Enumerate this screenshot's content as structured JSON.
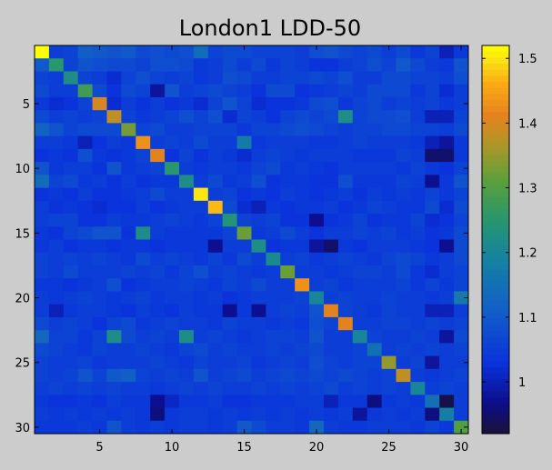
{
  "chart_data": {
    "type": "heatmap",
    "title": "London1 LDD-50",
    "xlabel": "",
    "ylabel": "",
    "rows": 30,
    "cols": 30,
    "x_ticks": [
      "5",
      "10",
      "15",
      "20",
      "25",
      "30"
    ],
    "y_ticks": [
      "5",
      "10",
      "15",
      "20",
      "25",
      "30"
    ],
    "colorbar": {
      "min": 0.92,
      "max": 1.52,
      "ticks": [
        "1",
        "1.1",
        "1.2",
        "1.3",
        "1.4",
        "1.5"
      ],
      "colormap": "parula"
    },
    "diagonal": [
      1.52,
      1.25,
      1.22,
      1.28,
      1.4,
      1.38,
      1.33,
      1.43,
      1.41,
      1.25,
      1.22,
      1.5,
      1.47,
      1.24,
      1.32,
      1.22,
      1.21,
      1.32,
      1.43,
      1.2,
      1.41,
      1.41,
      1.2,
      1.15,
      1.35,
      1.38,
      1.2,
      1.15,
      1.18,
      1.3
    ],
    "values": [
      [
        1.52,
        1.05,
        1.06,
        1.11,
        1.1,
        1.09,
        1.1,
        1.07,
        1.08,
        1.07,
        1.08,
        1.14,
        1.06,
        1.07,
        1.07,
        1.06,
        1.06,
        1.06,
        1.05,
        1.08,
        1.09,
        1.07,
        1.06,
        1.07,
        1.05,
        1.07,
        1.04,
        1.06,
        1.0,
        1.04
      ],
      [
        1.1,
        1.25,
        1.06,
        1.09,
        1.08,
        1.07,
        1.07,
        1.06,
        1.08,
        1.08,
        1.07,
        1.04,
        1.05,
        1.07,
        1.05,
        1.07,
        1.04,
        1.06,
        1.05,
        1.03,
        1.03,
        1.05,
        1.06,
        1.08,
        1.06,
        1.1,
        1.07,
        1.05,
        1.04,
        1.09
      ],
      [
        1.06,
        1.05,
        1.22,
        1.06,
        1.05,
        1.02,
        1.06,
        1.08,
        1.06,
        1.05,
        1.06,
        1.04,
        1.05,
        1.08,
        1.07,
        1.05,
        1.05,
        1.06,
        1.06,
        1.07,
        1.06,
        1.08,
        1.05,
        1.05,
        1.07,
        1.07,
        1.06,
        1.06,
        1.05,
        1.08
      ],
      [
        1.07,
        1.05,
        1.05,
        1.28,
        1.07,
        1.03,
        1.07,
        1.06,
        0.98,
        1.09,
        1.05,
        1.06,
        1.07,
        1.06,
        1.05,
        1.03,
        1.07,
        1.07,
        1.03,
        1.04,
        1.05,
        1.06,
        1.05,
        1.07,
        1.07,
        1.07,
        1.04,
        1.06,
        1.02,
        1.05
      ],
      [
        1.04,
        1.02,
        1.03,
        1.06,
        1.4,
        1.02,
        1.05,
        1.03,
        1.05,
        1.03,
        1.04,
        1.02,
        1.06,
        1.09,
        1.06,
        1.02,
        1.03,
        1.03,
        1.04,
        1.07,
        1.08,
        1.04,
        1.06,
        1.07,
        1.05,
        1.06,
        1.05,
        1.06,
        1.04,
        1.05
      ],
      [
        1.07,
        1.05,
        1.06,
        1.05,
        1.06,
        1.38,
        1.06,
        1.04,
        1.05,
        1.06,
        1.08,
        1.06,
        1.08,
        1.02,
        1.06,
        1.05,
        1.03,
        1.06,
        1.07,
        1.06,
        1.07,
        1.22,
        1.06,
        1.07,
        1.07,
        1.08,
        1.05,
        1.0,
        1.0,
        1.06
      ],
      [
        1.12,
        1.09,
        1.06,
        1.07,
        1.07,
        1.07,
        1.33,
        1.06,
        1.07,
        1.05,
        1.05,
        1.06,
        1.06,
        1.06,
        1.04,
        1.06,
        1.06,
        1.07,
        1.08,
        1.07,
        1.06,
        1.05,
        1.06,
        1.06,
        1.07,
        1.07,
        1.06,
        1.06,
        1.05,
        1.07
      ],
      [
        1.05,
        1.05,
        1.04,
        1.0,
        1.03,
        1.05,
        1.04,
        1.43,
        1.05,
        1.06,
        1.05,
        1.07,
        1.05,
        1.05,
        1.17,
        1.04,
        1.05,
        1.05,
        1.05,
        1.04,
        1.04,
        1.05,
        1.06,
        1.05,
        1.05,
        1.05,
        1.04,
        1.0,
        0.98,
        1.04
      ],
      [
        1.03,
        1.04,
        1.03,
        1.08,
        1.04,
        1.03,
        1.04,
        1.06,
        1.41,
        1.03,
        1.06,
        1.03,
        1.05,
        1.04,
        1.02,
        1.05,
        1.06,
        1.05,
        1.04,
        1.05,
        1.05,
        1.05,
        1.04,
        1.04,
        1.04,
        1.06,
        1.05,
        0.95,
        0.95,
        1.04
      ],
      [
        1.09,
        1.04,
        1.05,
        1.05,
        1.03,
        1.09,
        1.04,
        1.05,
        1.06,
        1.25,
        1.05,
        1.04,
        1.05,
        1.05,
        1.04,
        1.06,
        1.07,
        1.04,
        1.05,
        1.04,
        1.03,
        1.05,
        1.05,
        1.05,
        1.05,
        1.04,
        1.06,
        1.04,
        1.03,
        1.06
      ],
      [
        1.14,
        1.06,
        1.07,
        1.04,
        1.05,
        1.03,
        1.05,
        1.03,
        1.04,
        1.04,
        1.22,
        1.05,
        1.07,
        1.04,
        1.05,
        1.08,
        1.03,
        1.04,
        1.04,
        1.03,
        1.03,
        1.08,
        1.04,
        1.04,
        1.04,
        1.06,
        1.05,
        0.97,
        1.04,
        1.09
      ],
      [
        1.03,
        1.04,
        1.03,
        1.05,
        1.03,
        1.03,
        1.04,
        1.05,
        1.07,
        1.05,
        1.05,
        1.5,
        1.05,
        1.06,
        1.03,
        1.04,
        1.03,
        1.05,
        1.04,
        1.03,
        1.04,
        1.05,
        1.03,
        1.05,
        1.04,
        1.05,
        1.04,
        1.06,
        1.04,
        1.06
      ],
      [
        1.05,
        1.03,
        1.04,
        1.03,
        1.02,
        1.03,
        1.03,
        1.05,
        1.03,
        1.04,
        1.05,
        1.05,
        1.47,
        1.07,
        1.02,
        1.0,
        1.04,
        1.03,
        1.04,
        1.04,
        1.05,
        1.03,
        1.04,
        1.06,
        1.05,
        1.04,
        1.04,
        1.07,
        1.02,
        1.07
      ],
      [
        1.05,
        1.06,
        1.06,
        1.03,
        1.03,
        1.05,
        1.04,
        1.04,
        1.05,
        1.06,
        1.05,
        1.04,
        1.06,
        1.24,
        1.06,
        1.05,
        1.06,
        1.03,
        1.03,
        0.97,
        1.03,
        1.04,
        1.06,
        1.03,
        1.04,
        1.04,
        1.06,
        1.02,
        1.03,
        1.06
      ],
      [
        1.04,
        1.03,
        1.06,
        1.07,
        1.09,
        1.09,
        1.03,
        1.22,
        1.05,
        1.04,
        1.04,
        1.04,
        1.04,
        1.06,
        1.32,
        1.04,
        1.05,
        1.07,
        1.05,
        1.03,
        1.05,
        1.05,
        1.06,
        1.05,
        1.06,
        1.04,
        1.05,
        1.03,
        1.04,
        1.07
      ],
      [
        1.04,
        1.05,
        1.03,
        1.04,
        1.04,
        1.03,
        1.04,
        1.04,
        1.03,
        1.04,
        1.04,
        1.04,
        0.97,
        1.05,
        1.05,
        1.22,
        1.03,
        1.04,
        1.04,
        0.98,
        0.95,
        1.04,
        1.03,
        1.05,
        1.05,
        1.05,
        1.04,
        1.03,
        0.97,
        1.07
      ],
      [
        1.06,
        1.05,
        1.06,
        1.05,
        1.06,
        1.05,
        1.04,
        1.07,
        1.05,
        1.06,
        1.05,
        1.04,
        1.06,
        1.04,
        1.07,
        1.05,
        1.21,
        1.05,
        1.06,
        1.04,
        1.05,
        1.06,
        1.05,
        1.04,
        1.06,
        1.07,
        1.06,
        1.04,
        1.05,
        1.07
      ],
      [
        1.06,
        1.05,
        1.07,
        1.05,
        1.05,
        1.05,
        1.06,
        1.05,
        1.06,
        1.04,
        1.06,
        1.08,
        1.05,
        1.06,
        1.05,
        1.04,
        1.05,
        1.32,
        1.05,
        1.05,
        1.04,
        1.05,
        1.06,
        1.06,
        1.05,
        1.07,
        1.04,
        1.02,
        1.05,
        1.06
      ],
      [
        1.04,
        1.04,
        1.03,
        1.04,
        1.05,
        1.08,
        1.03,
        1.04,
        1.05,
        1.05,
        1.06,
        1.05,
        1.04,
        1.06,
        1.05,
        1.07,
        1.05,
        1.05,
        1.43,
        1.05,
        1.06,
        1.04,
        1.05,
        1.05,
        1.05,
        1.06,
        1.04,
        1.06,
        1.04,
        1.06
      ],
      [
        1.05,
        1.04,
        1.05,
        1.06,
        1.05,
        1.04,
        1.05,
        1.06,
        1.04,
        1.05,
        1.05,
        1.04,
        1.05,
        1.03,
        1.04,
        1.05,
        1.05,
        1.05,
        1.06,
        1.2,
        1.05,
        1.06,
        1.05,
        1.05,
        1.06,
        1.05,
        1.05,
        1.04,
        1.05,
        1.17
      ],
      [
        1.05,
        1.0,
        1.04,
        1.05,
        1.05,
        1.04,
        1.03,
        1.05,
        1.04,
        1.03,
        1.05,
        1.04,
        1.04,
        0.97,
        1.04,
        0.97,
        1.05,
        1.06,
        1.05,
        1.09,
        1.41,
        1.06,
        1.05,
        1.04,
        1.06,
        1.05,
        1.05,
        1.0,
        1.0,
        1.05
      ],
      [
        1.07,
        1.05,
        1.06,
        1.05,
        1.03,
        1.06,
        1.07,
        1.04,
        1.05,
        1.06,
        1.05,
        1.05,
        1.04,
        1.06,
        1.05,
        1.05,
        1.04,
        1.05,
        1.04,
        1.08,
        1.06,
        1.41,
        1.05,
        1.05,
        1.06,
        1.06,
        1.05,
        1.06,
        1.05,
        1.06
      ],
      [
        1.13,
        1.06,
        1.06,
        1.04,
        1.06,
        1.22,
        1.07,
        1.05,
        1.06,
        1.05,
        1.22,
        1.05,
        1.06,
        1.05,
        1.04,
        1.05,
        1.06,
        1.06,
        1.05,
        1.09,
        1.05,
        1.05,
        1.2,
        1.06,
        1.05,
        1.05,
        1.06,
        1.05,
        0.98,
        1.07
      ],
      [
        1.07,
        1.06,
        1.05,
        1.04,
        1.06,
        1.05,
        1.05,
        1.06,
        1.05,
        1.04,
        1.06,
        1.07,
        1.05,
        1.06,
        1.05,
        1.05,
        1.06,
        1.05,
        1.06,
        1.07,
        1.05,
        1.05,
        1.06,
        1.15,
        1.05,
        1.06,
        1.05,
        1.06,
        1.05,
        1.06
      ],
      [
        1.06,
        1.05,
        1.05,
        1.06,
        1.04,
        1.05,
        1.05,
        1.05,
        1.06,
        1.05,
        1.04,
        1.06,
        1.05,
        1.05,
        1.06,
        1.04,
        1.05,
        1.06,
        1.05,
        1.08,
        1.06,
        1.05,
        1.06,
        1.06,
        1.35,
        1.05,
        1.06,
        0.98,
        1.05,
        1.05
      ],
      [
        1.06,
        1.05,
        1.06,
        1.09,
        1.06,
        1.1,
        1.11,
        1.06,
        1.05,
        1.06,
        1.05,
        1.09,
        1.05,
        1.06,
        1.07,
        1.05,
        1.06,
        1.07,
        1.06,
        1.07,
        1.06,
        1.07,
        1.06,
        1.05,
        1.06,
        1.38,
        1.05,
        1.04,
        1.05,
        1.06
      ],
      [
        1.05,
        1.06,
        1.05,
        1.06,
        1.05,
        1.06,
        1.05,
        1.05,
        1.04,
        1.05,
        1.06,
        1.05,
        1.06,
        1.05,
        1.05,
        1.06,
        1.05,
        1.06,
        1.05,
        1.06,
        1.07,
        1.05,
        1.06,
        1.05,
        1.06,
        1.05,
        1.2,
        1.05,
        1.06,
        1.05
      ],
      [
        1.04,
        1.03,
        1.03,
        1.04,
        1.03,
        1.05,
        1.04,
        1.04,
        0.97,
        1.01,
        1.04,
        1.04,
        1.05,
        1.03,
        1.03,
        1.04,
        1.04,
        1.04,
        1.05,
        1.05,
        1.0,
        1.04,
        1.04,
        0.96,
        1.04,
        1.05,
        1.04,
        1.15,
        0.93,
        1.05
      ],
      [
        1.05,
        1.04,
        1.05,
        1.04,
        1.05,
        1.04,
        1.05,
        1.04,
        0.96,
        1.04,
        1.05,
        1.05,
        1.04,
        1.05,
        1.04,
        1.05,
        1.04,
        1.05,
        1.04,
        1.05,
        1.04,
        1.05,
        0.98,
        1.04,
        1.05,
        1.04,
        1.05,
        0.96,
        1.18,
        1.05
      ],
      [
        1.04,
        1.04,
        1.04,
        1.05,
        1.04,
        1.09,
        1.05,
        1.04,
        1.05,
        1.04,
        1.05,
        1.05,
        1.04,
        1.05,
        1.1,
        1.07,
        1.05,
        1.05,
        1.04,
        1.13,
        1.05,
        1.04,
        1.04,
        1.05,
        1.05,
        1.05,
        1.04,
        1.06,
        1.04,
        1.3
      ]
    ]
  }
}
